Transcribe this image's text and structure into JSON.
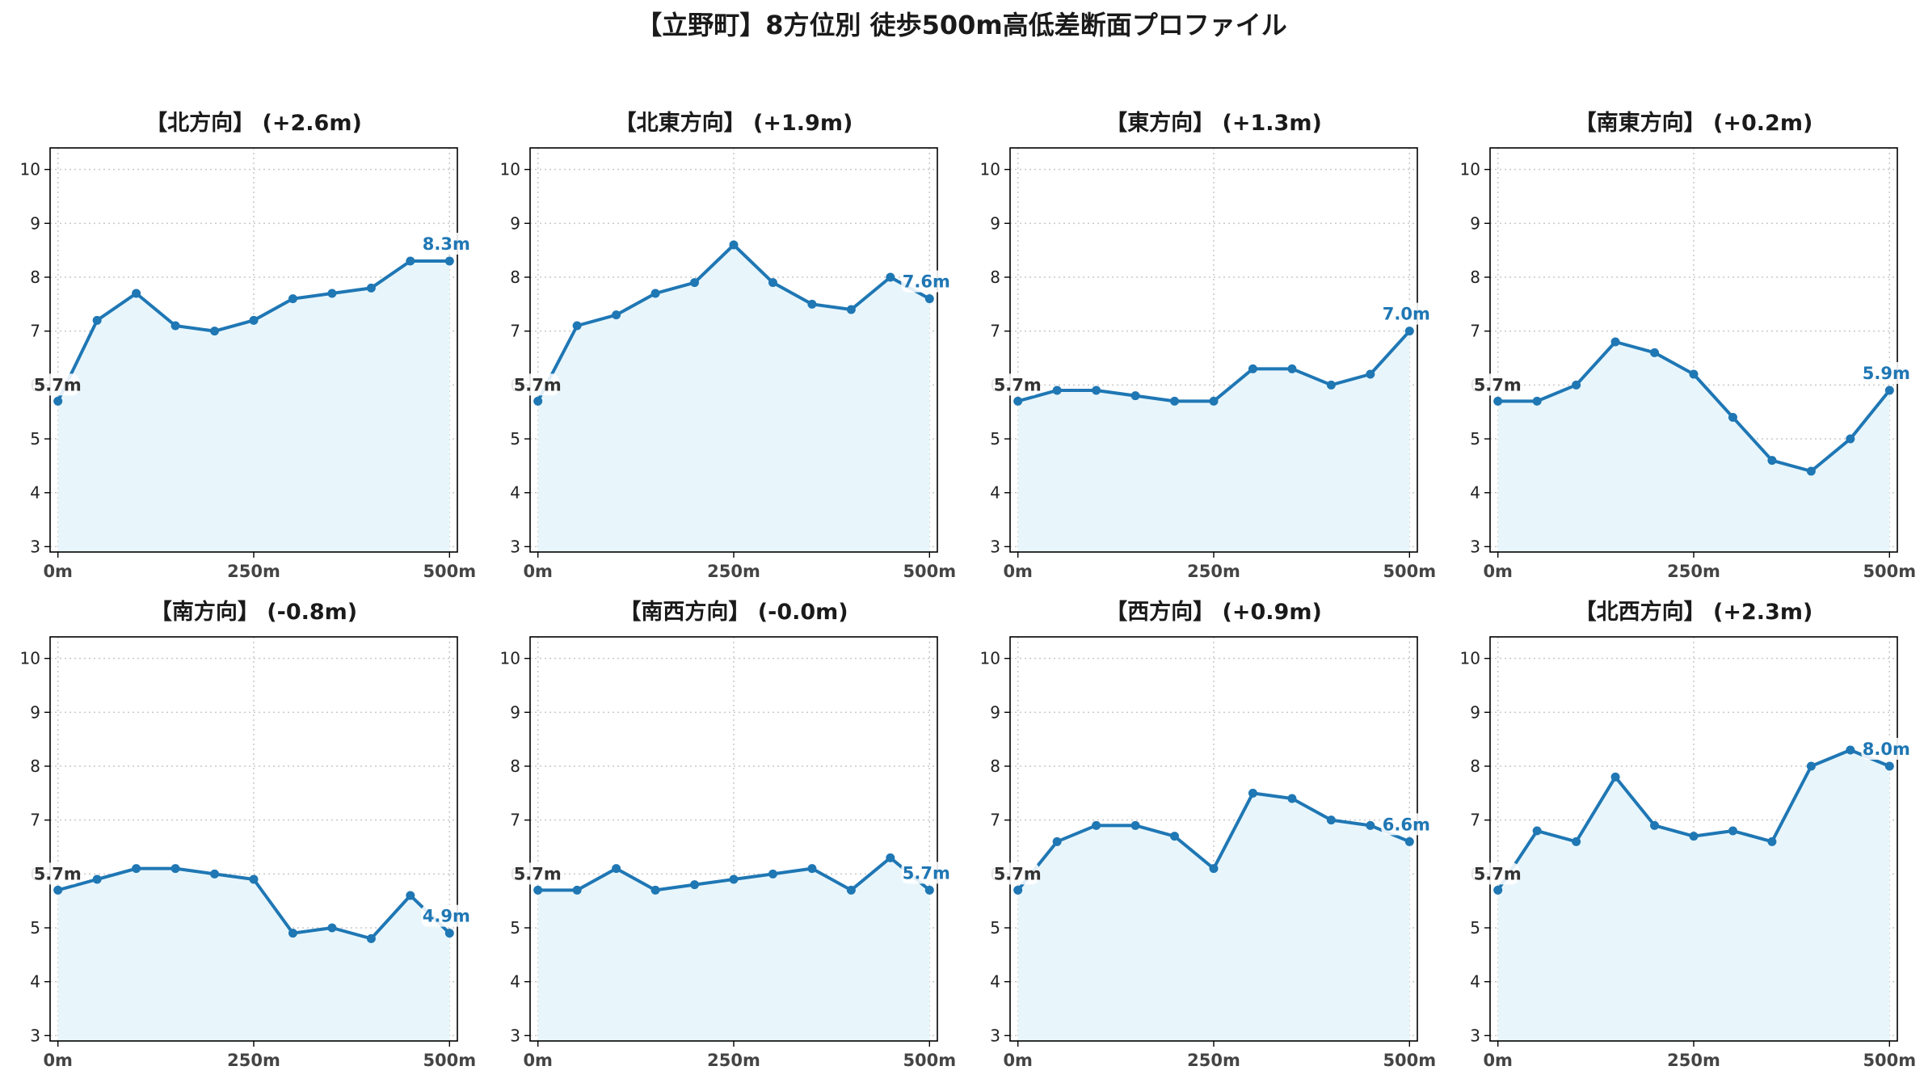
{
  "figure": {
    "title": "【立野町】8方位別 徒歩500m高低差断面プロファイル",
    "line_color": "#1f77b4",
    "fill_color": "#e8f6fc",
    "start_label_color": "#333333",
    "end_label_color": "#1f77b4",
    "grid_color": "#c8c8c8"
  },
  "chart_data": [
    {
      "type": "line",
      "title": "【北方向】 (+2.6m)",
      "x": [
        0,
        50,
        100,
        150,
        200,
        250,
        300,
        350,
        400,
        450,
        500
      ],
      "y": [
        5.7,
        7.2,
        7.7,
        7.1,
        7.0,
        7.2,
        7.6,
        7.7,
        7.8,
        8.3,
        8.3
      ],
      "start_label": "5.7m",
      "end_label": "8.3m",
      "xticks": [
        "0m",
        "250m",
        "500m"
      ],
      "yticks": [
        3,
        4,
        5,
        6,
        7,
        8,
        9,
        10
      ],
      "xlim": [
        -10,
        510
      ],
      "ylim": [
        2.9,
        10.4
      ],
      "grid": true
    },
    {
      "type": "line",
      "title": "【北東方向】 (+1.9m)",
      "x": [
        0,
        50,
        100,
        150,
        200,
        250,
        300,
        350,
        400,
        450,
        500
      ],
      "y": [
        5.7,
        7.1,
        7.3,
        7.7,
        7.9,
        8.6,
        7.9,
        7.5,
        7.4,
        8.0,
        7.6
      ],
      "start_label": "5.7m",
      "end_label": "7.6m",
      "xticks": [
        "0m",
        "250m",
        "500m"
      ],
      "yticks": [
        3,
        4,
        5,
        6,
        7,
        8,
        9,
        10
      ],
      "xlim": [
        -10,
        510
      ],
      "ylim": [
        2.9,
        10.4
      ],
      "grid": true
    },
    {
      "type": "line",
      "title": "【東方向】 (+1.3m)",
      "x": [
        0,
        50,
        100,
        150,
        200,
        250,
        300,
        350,
        400,
        450,
        500
      ],
      "y": [
        5.7,
        5.9,
        5.9,
        5.8,
        5.7,
        5.7,
        6.3,
        6.3,
        6.0,
        6.2,
        7.0
      ],
      "start_label": "5.7m",
      "end_label": "7.0m",
      "xticks": [
        "0m",
        "250m",
        "500m"
      ],
      "yticks": [
        3,
        4,
        5,
        6,
        7,
        8,
        9,
        10
      ],
      "xlim": [
        -10,
        510
      ],
      "ylim": [
        2.9,
        10.4
      ],
      "grid": true
    },
    {
      "type": "line",
      "title": "【南東方向】 (+0.2m)",
      "x": [
        0,
        50,
        100,
        150,
        200,
        250,
        300,
        350,
        400,
        450,
        500
      ],
      "y": [
        5.7,
        5.7,
        6.0,
        6.8,
        6.6,
        6.2,
        5.4,
        4.6,
        4.4,
        5.0,
        5.9
      ],
      "start_label": "5.7m",
      "end_label": "5.9m",
      "xticks": [
        "0m",
        "250m",
        "500m"
      ],
      "yticks": [
        3,
        4,
        5,
        6,
        7,
        8,
        9,
        10
      ],
      "xlim": [
        -10,
        510
      ],
      "ylim": [
        2.9,
        10.4
      ],
      "grid": true
    },
    {
      "type": "line",
      "title": "【南方向】 (-0.8m)",
      "x": [
        0,
        50,
        100,
        150,
        200,
        250,
        300,
        350,
        400,
        450,
        500
      ],
      "y": [
        5.7,
        5.9,
        6.1,
        6.1,
        6.0,
        5.9,
        4.9,
        5.0,
        4.8,
        5.6,
        4.9
      ],
      "start_label": "5.7m",
      "end_label": "4.9m",
      "xticks": [
        "0m",
        "250m",
        "500m"
      ],
      "yticks": [
        3,
        4,
        5,
        6,
        7,
        8,
        9,
        10
      ],
      "xlim": [
        -10,
        510
      ],
      "ylim": [
        2.9,
        10.4
      ],
      "grid": true
    },
    {
      "type": "line",
      "title": "【南西方向】 (-0.0m)",
      "x": [
        0,
        50,
        100,
        150,
        200,
        250,
        300,
        350,
        400,
        450,
        500
      ],
      "y": [
        5.7,
        5.7,
        6.1,
        5.7,
        5.8,
        5.9,
        6.0,
        6.1,
        5.7,
        6.3,
        5.7
      ],
      "start_label": "5.7m",
      "end_label": "5.7m",
      "xticks": [
        "0m",
        "250m",
        "500m"
      ],
      "yticks": [
        3,
        4,
        5,
        6,
        7,
        8,
        9,
        10
      ],
      "xlim": [
        -10,
        510
      ],
      "ylim": [
        2.9,
        10.4
      ],
      "grid": true
    },
    {
      "type": "line",
      "title": "【西方向】 (+0.9m)",
      "x": [
        0,
        50,
        100,
        150,
        200,
        250,
        300,
        350,
        400,
        450,
        500
      ],
      "y": [
        5.7,
        6.6,
        6.9,
        6.9,
        6.7,
        6.1,
        7.5,
        7.4,
        7.0,
        6.9,
        6.6
      ],
      "start_label": "5.7m",
      "end_label": "6.6m",
      "xticks": [
        "0m",
        "250m",
        "500m"
      ],
      "yticks": [
        3,
        4,
        5,
        6,
        7,
        8,
        9,
        10
      ],
      "xlim": [
        -10,
        510
      ],
      "ylim": [
        2.9,
        10.4
      ],
      "grid": true
    },
    {
      "type": "line",
      "title": "【北西方向】 (+2.3m)",
      "x": [
        0,
        50,
        100,
        150,
        200,
        250,
        300,
        350,
        400,
        450,
        500
      ],
      "y": [
        5.7,
        6.8,
        6.6,
        7.8,
        6.9,
        6.7,
        6.8,
        6.6,
        8.0,
        8.3,
        8.0
      ],
      "start_label": "5.7m",
      "end_label": "8.0m",
      "xticks": [
        "0m",
        "250m",
        "500m"
      ],
      "yticks": [
        3,
        4,
        5,
        6,
        7,
        8,
        9,
        10
      ],
      "xlim": [
        -10,
        510
      ],
      "ylim": [
        2.9,
        10.4
      ],
      "grid": true
    }
  ]
}
